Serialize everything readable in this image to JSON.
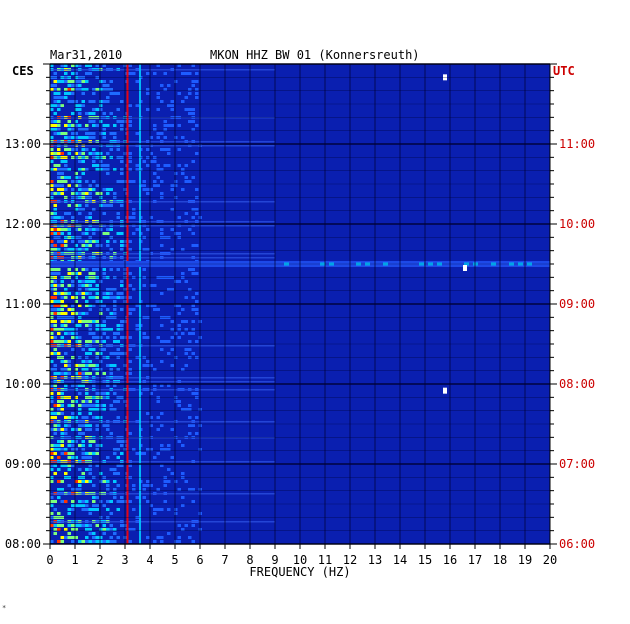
{
  "header": {
    "date": "Mar31,2010",
    "station": "MKON HHZ BW 01 (Konnersreuth)"
  },
  "labels": {
    "left_tz": "CES",
    "right_tz": "UTC",
    "corner_mark": "*"
  },
  "chart_data": {
    "type": "heatmap",
    "title": "MKON HHZ BW 01 (Konnersreuth)",
    "subtitle": "Mar31,2010",
    "xlabel": "FREQUENCY (HZ)",
    "xlim": [
      0,
      20
    ],
    "x_ticks": [
      "0",
      "1",
      "2",
      "3",
      "4",
      "5",
      "6",
      "7",
      "8",
      "9",
      "10",
      "11",
      "12",
      "13",
      "14",
      "15",
      "16",
      "17",
      "18",
      "19",
      "20"
    ],
    "left_axis": {
      "name": "CES",
      "ticks": [
        "08:00",
        "09:00",
        "10:00",
        "11:00",
        "12:00",
        "13:00"
      ]
    },
    "right_axis": {
      "name": "UTC",
      "ticks": [
        "06:00",
        "07:00",
        "08:00",
        "09:00",
        "10:00",
        "11:00"
      ]
    },
    "time_range_ces": [
      "08:00",
      "14:00"
    ],
    "colors": {
      "background": "#0a1fb0",
      "grid": "#000033",
      "low": "#0a1fb0",
      "mid": "#00c8ff",
      "high": "#ffff00",
      "peak": "#ff0000",
      "right_axis_text": "#cc0000"
    },
    "features": [
      {
        "kind": "energy_band",
        "freq_range_hz": [
          0,
          3
        ],
        "intensity": "high"
      },
      {
        "kind": "spectral_line",
        "freq_hz": 3.1,
        "intensity": "peak"
      },
      {
        "kind": "spectral_line",
        "freq_hz": 3.6,
        "intensity": "mid"
      },
      {
        "kind": "broadband_event",
        "time_ces": "11:30",
        "freq_range_hz": [
          0,
          20
        ]
      },
      {
        "kind": "spot",
        "freq_hz": 15.8,
        "time_ces": "13:50"
      },
      {
        "kind": "spot",
        "freq_hz": 15.8,
        "time_ces": "09:55"
      },
      {
        "kind": "spot",
        "freq_hz": 16.6,
        "time_ces": "11:27"
      }
    ]
  }
}
